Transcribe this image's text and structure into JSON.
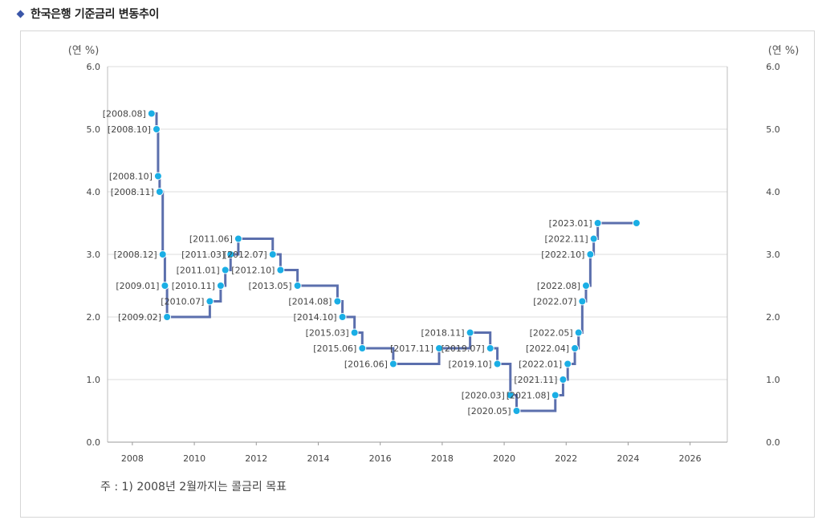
{
  "header": {
    "title": "한국은행 기준금리 변동추이",
    "bullet_icon": "diamond-icon",
    "accent_color": "#3a56a8"
  },
  "note": "주 : 1) 2008년 2월까지는 콜금리 목표",
  "chart_data": {
    "type": "line",
    "step": true,
    "ylabel": "(연 %)",
    "ylabel_right": "(연 %)",
    "ylim": [
      0,
      6
    ],
    "xlim": [
      2007.2,
      2027.2
    ],
    "y_ticks": [
      "0.0",
      "1.0",
      "2.0",
      "3.0",
      "4.0",
      "5.0",
      "6.0"
    ],
    "x_ticks": [
      "2008",
      "2010",
      "2012",
      "2014",
      "2016",
      "2018",
      "2020",
      "2022",
      "2024",
      "2026"
    ],
    "grid": true,
    "line_color": "#5b6fad",
    "point_color": "#1aaee5",
    "series": [
      {
        "points": [
          {
            "label": "[2008.08]",
            "x": 2008.62,
            "y": 5.25
          },
          {
            "label": "[2008.10]",
            "x": 2008.78,
            "y": 5.0
          },
          {
            "label": "[2008.10]",
            "x": 2008.83,
            "y": 4.25
          },
          {
            "label": "[2008.11]",
            "x": 2008.88,
            "y": 4.0
          },
          {
            "label": "[2008.12]",
            "x": 2008.98,
            "y": 3.0
          },
          {
            "label": "[2009.01]",
            "x": 2009.05,
            "y": 2.5
          },
          {
            "label": "[2009.02]",
            "x": 2009.12,
            "y": 2.0
          },
          {
            "label": "[2010.07]",
            "x": 2010.5,
            "y": 2.25
          },
          {
            "label": "[2010.11]",
            "x": 2010.85,
            "y": 2.5
          },
          {
            "label": "[2011.01]",
            "x": 2011.0,
            "y": 2.75
          },
          {
            "label": "[2011.03]",
            "x": 2011.17,
            "y": 3.0
          },
          {
            "label": "[2011.06]",
            "x": 2011.42,
            "y": 3.25
          },
          {
            "label": "[2012.07]",
            "x": 2012.53,
            "y": 3.0
          },
          {
            "label": "[2012.10]",
            "x": 2012.78,
            "y": 2.75
          },
          {
            "label": "[2013.05]",
            "x": 2013.33,
            "y": 2.5
          },
          {
            "label": "[2014.08]",
            "x": 2014.62,
            "y": 2.25
          },
          {
            "label": "[2014.10]",
            "x": 2014.78,
            "y": 2.0
          },
          {
            "label": "[2015.03]",
            "x": 2015.17,
            "y": 1.75
          },
          {
            "label": "[2015.06]",
            "x": 2015.42,
            "y": 1.5
          },
          {
            "label": "[2016.06]",
            "x": 2016.42,
            "y": 1.25
          },
          {
            "label": "[2017.11]",
            "x": 2017.9,
            "y": 1.5
          },
          {
            "label": "[2018.11]",
            "x": 2018.9,
            "y": 1.75
          },
          {
            "label": "[2019.07]",
            "x": 2019.55,
            "y": 1.5
          },
          {
            "label": "[2019.10]",
            "x": 2019.78,
            "y": 1.25
          },
          {
            "label": "[2020.03]",
            "x": 2020.2,
            "y": 0.75
          },
          {
            "label": "[2020.05]",
            "x": 2020.4,
            "y": 0.5
          },
          {
            "label": "[2021.08]",
            "x": 2021.65,
            "y": 0.75
          },
          {
            "label": "[2021.11]",
            "x": 2021.9,
            "y": 1.0
          },
          {
            "label": "[2022.01]",
            "x": 2022.05,
            "y": 1.25
          },
          {
            "label": "[2022.04]",
            "x": 2022.28,
            "y": 1.5
          },
          {
            "label": "[2022.05]",
            "x": 2022.4,
            "y": 1.75
          },
          {
            "label": "[2022.07]",
            "x": 2022.52,
            "y": 2.25
          },
          {
            "label": "[2022.08]",
            "x": 2022.64,
            "y": 2.5
          },
          {
            "label": "[2022.10]",
            "x": 2022.78,
            "y": 3.0
          },
          {
            "label": "[2022.11]",
            "x": 2022.89,
            "y": 3.25
          },
          {
            "label": "[2023.01]",
            "x": 2023.02,
            "y": 3.5
          },
          {
            "label": "",
            "x": 2024.27,
            "y": 3.5
          }
        ]
      }
    ]
  }
}
